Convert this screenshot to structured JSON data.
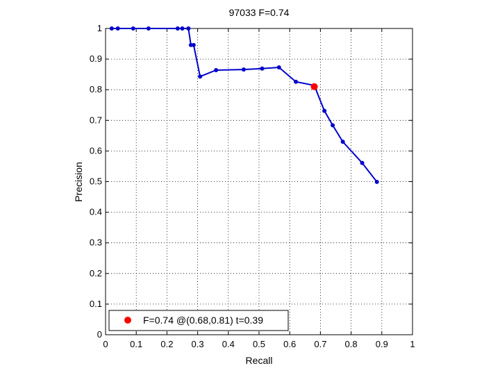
{
  "chart_data": {
    "type": "line",
    "title": "97033 F=0.74",
    "xlabel": "Recall",
    "ylabel": "Precision",
    "xlim": [
      0,
      1
    ],
    "ylim": [
      0,
      1
    ],
    "xticks": [
      "0",
      "0.1",
      "0.2",
      "0.3",
      "0.4",
      "0.5",
      "0.6",
      "0.7",
      "0.8",
      "0.9",
      "1"
    ],
    "yticks": [
      "0",
      "0.1",
      "0.2",
      "0.3",
      "0.4",
      "0.5",
      "0.6",
      "0.7",
      "0.8",
      "0.9",
      "1"
    ],
    "grid": true,
    "legend_position": "bottom-left",
    "series": [
      {
        "color": "#0000cc",
        "points": [
          [
            0.02,
            1.0
          ],
          [
            0.04,
            1.0
          ],
          [
            0.09,
            1.0
          ],
          [
            0.14,
            1.0
          ],
          [
            0.235,
            1.0
          ],
          [
            0.25,
            1.0
          ],
          [
            0.27,
            1.0
          ],
          [
            0.278,
            0.946
          ],
          [
            0.287,
            0.946
          ],
          [
            0.308,
            0.843
          ],
          [
            0.36,
            0.864
          ],
          [
            0.45,
            0.866
          ],
          [
            0.51,
            0.869
          ],
          [
            0.565,
            0.873
          ],
          [
            0.62,
            0.826
          ],
          [
            0.68,
            0.814
          ],
          [
            0.713,
            0.731
          ],
          [
            0.74,
            0.684
          ],
          [
            0.773,
            0.63
          ],
          [
            0.836,
            0.561
          ],
          [
            0.884,
            0.499
          ]
        ]
      }
    ],
    "highlight": {
      "x": 0.68,
      "y": 0.81,
      "color": "#ff0000",
      "label": "F=0.74 @(0.68,0.81) t=0.39"
    }
  }
}
